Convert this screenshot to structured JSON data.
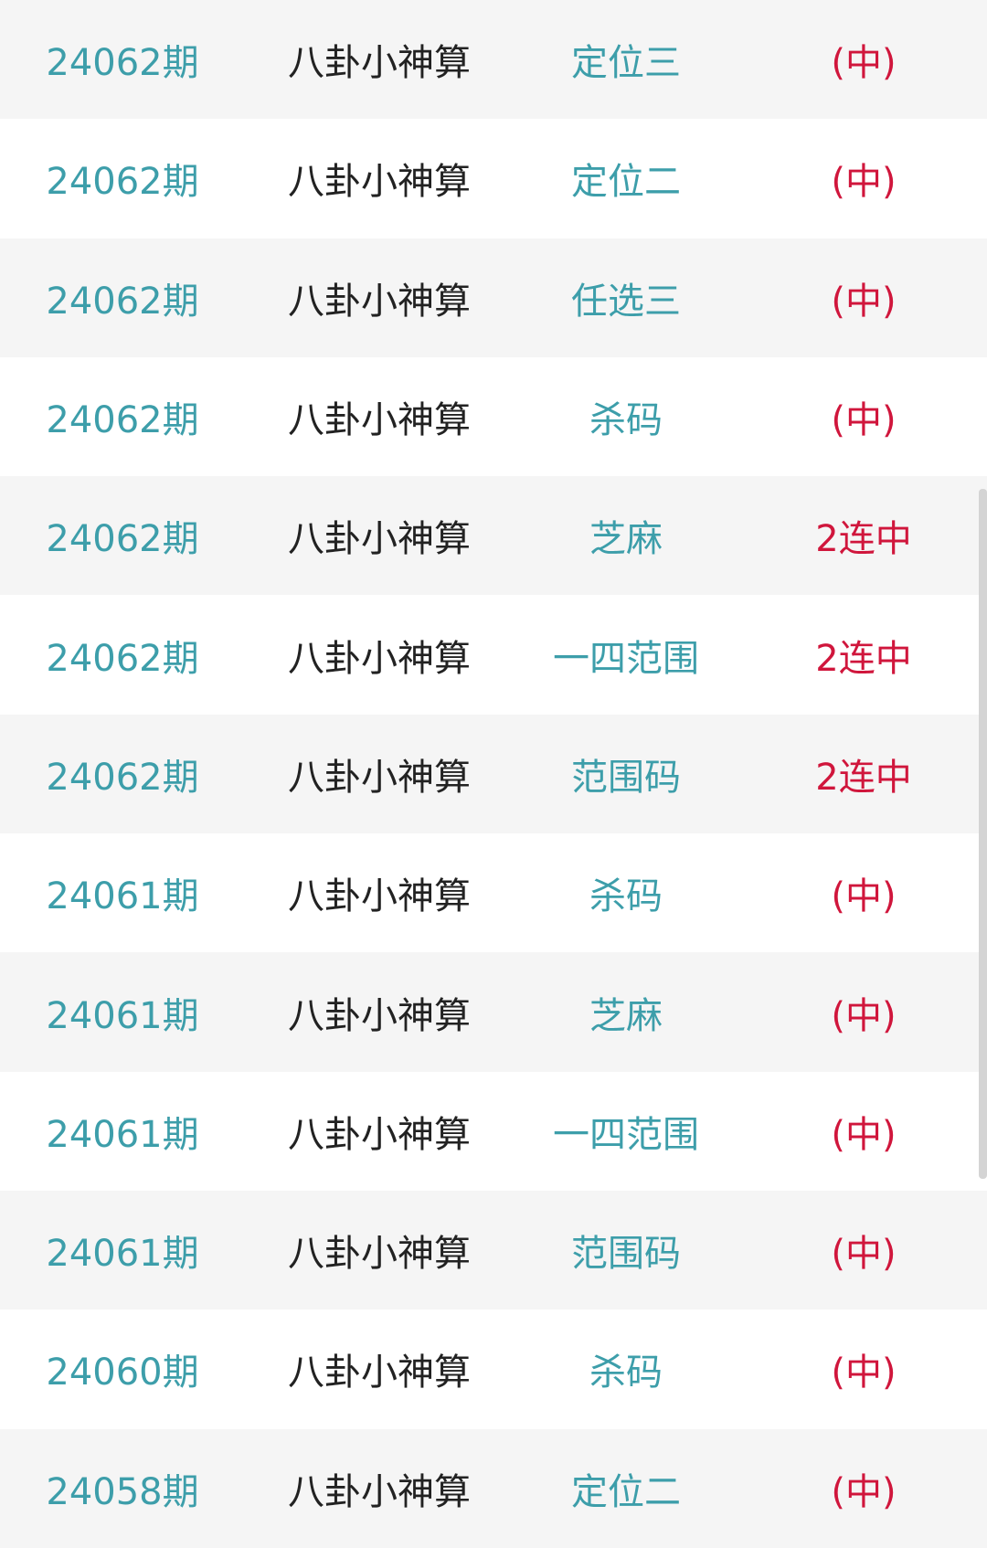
{
  "colors": {
    "issue": "#3d9eaa",
    "name": "#222222",
    "type": "#3d9eaa",
    "result": "#d0163c"
  },
  "rows": [
    {
      "issue": "24062期",
      "name": "八卦小神算",
      "type": "定位三",
      "result": "(中)"
    },
    {
      "issue": "24062期",
      "name": "八卦小神算",
      "type": "定位二",
      "result": "(中)"
    },
    {
      "issue": "24062期",
      "name": "八卦小神算",
      "type": "任选三",
      "result": "(中)"
    },
    {
      "issue": "24062期",
      "name": "八卦小神算",
      "type": "杀码",
      "result": "(中)"
    },
    {
      "issue": "24062期",
      "name": "八卦小神算",
      "type": "芝麻",
      "result": "2连中"
    },
    {
      "issue": "24062期",
      "name": "八卦小神算",
      "type": "一四范围",
      "result": "2连中"
    },
    {
      "issue": "24062期",
      "name": "八卦小神算",
      "type": "范围码",
      "result": "2连中"
    },
    {
      "issue": "24061期",
      "name": "八卦小神算",
      "type": "杀码",
      "result": "(中)"
    },
    {
      "issue": "24061期",
      "name": "八卦小神算",
      "type": "芝麻",
      "result": "(中)"
    },
    {
      "issue": "24061期",
      "name": "八卦小神算",
      "type": "一四范围",
      "result": "(中)"
    },
    {
      "issue": "24061期",
      "name": "八卦小神算",
      "type": "范围码",
      "result": "(中)"
    },
    {
      "issue": "24060期",
      "name": "八卦小神算",
      "type": "杀码",
      "result": "(中)"
    },
    {
      "issue": "24058期",
      "name": "八卦小神算",
      "type": "定位二",
      "result": "(中)"
    }
  ]
}
